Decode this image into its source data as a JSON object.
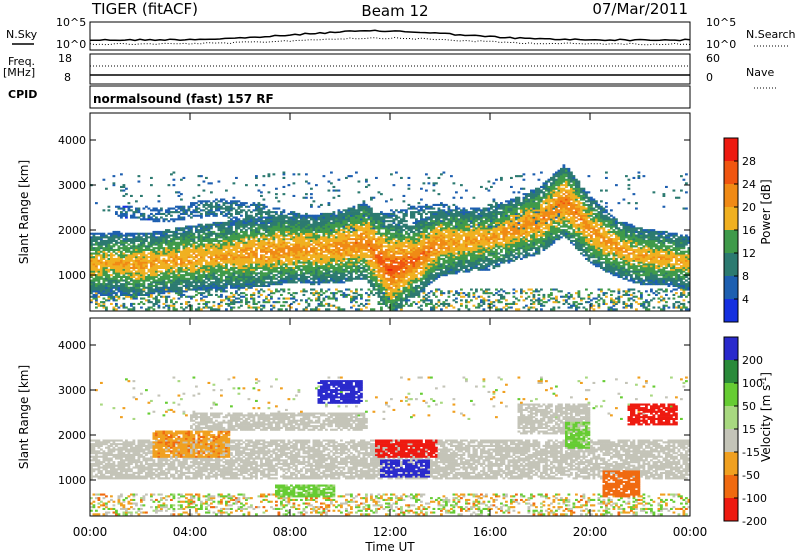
{
  "header": {
    "left": "TIGER (fitACF)",
    "center": "Beam 12",
    "right": "07/Mar/2011"
  },
  "top_panels": {
    "nsky_label": "N.Sky",
    "nsearch_label": "N.Search",
    "exp_top": "10^5",
    "exp_bottom": "10^0",
    "freq_label_1": "Freq.",
    "freq_label_2": "[MHz]",
    "freq_ticks": [
      "18",
      "8"
    ],
    "nave_label": "Nave",
    "nave_ticks": [
      "60",
      "0"
    ],
    "cpid_label": "CPID",
    "cpid_text": "normalsound (fast) 157 RF"
  },
  "colors": {
    "power_scale": [
      "#1530e0",
      "#1d5fb0",
      "#2c7a70",
      "#3f9a4a",
      "#f0b020",
      "#f08a15",
      "#f05510",
      "#ee1a10"
    ],
    "velocity_scale": [
      "#2a2acc",
      "#2a8a3a",
      "#66cc33",
      "#a8d880",
      "#c4c4b8",
      "#f0a020",
      "#f06a10",
      "#ee1a10"
    ],
    "ground_scatter": "#c4c4b8"
  },
  "chart_data": [
    {
      "type": "heatmap",
      "name": "power",
      "xlabel": "",
      "ylabel": "Slant Range [km]",
      "x_ticks": [
        "00:00",
        "04:00",
        "08:00",
        "12:00",
        "16:00",
        "20:00",
        "00:00"
      ],
      "y_ticks": [
        1000,
        2000,
        3000,
        4000
      ],
      "ylim": [
        200,
        4600
      ],
      "xlim_hours": [
        0,
        24
      ],
      "colorbar_label": "Power [dB]",
      "colorbar_ticks": [
        4,
        8,
        12,
        16,
        20,
        24,
        28
      ],
      "clim": [
        0,
        32
      ],
      "echo_band": [
        [
          0,
          1200,
          1400,
          20
        ],
        [
          1,
          1250,
          1400,
          19
        ],
        [
          2,
          1200,
          1400,
          21
        ],
        [
          3,
          1280,
          1400,
          20
        ],
        [
          4,
          1350,
          1450,
          21
        ],
        [
          5,
          1400,
          1500,
          20
        ],
        [
          6,
          1450,
          1550,
          21
        ],
        [
          7,
          1500,
          1550,
          22
        ],
        [
          8,
          1550,
          1500,
          22
        ],
        [
          9,
          1550,
          1550,
          21
        ],
        [
          10,
          1600,
          1600,
          22
        ],
        [
          11,
          1750,
          1700,
          23
        ],
        [
          12,
          1100,
          2000,
          27
        ],
        [
          13,
          1300,
          1600,
          25
        ],
        [
          14,
          1700,
          1500,
          22
        ],
        [
          15,
          1750,
          1400,
          21
        ],
        [
          16,
          1800,
          1400,
          20
        ],
        [
          17,
          2000,
          1400,
          22
        ],
        [
          18,
          2200,
          1500,
          22
        ],
        [
          19,
          2650,
          1600,
          24
        ],
        [
          20,
          2000,
          1500,
          22
        ],
        [
          21,
          1600,
          1300,
          21
        ],
        [
          22,
          1400,
          1250,
          20
        ],
        [
          23,
          1350,
          1200,
          20
        ],
        [
          24,
          1250,
          1200,
          19
        ]
      ],
      "upper_band": [
        [
          1,
          2400,
          250,
          8
        ],
        [
          3,
          2300,
          300,
          9
        ],
        [
          5,
          2500,
          400,
          10
        ],
        [
          7,
          2300,
          500,
          11
        ],
        [
          9,
          2100,
          400,
          12
        ],
        [
          11,
          2150,
          350,
          11
        ],
        [
          14,
          2350,
          500,
          10
        ],
        [
          16,
          2100,
          300,
          10
        ],
        [
          18,
          2250,
          400,
          11
        ],
        [
          19,
          2500,
          300,
          12
        ]
      ]
    },
    {
      "type": "heatmap",
      "name": "velocity",
      "xlabel": "Time UT",
      "ylabel": "Slant Range [km]",
      "x_ticks": [
        "00:00",
        "04:00",
        "08:00",
        "12:00",
        "16:00",
        "20:00",
        "00:00"
      ],
      "y_ticks": [
        1000,
        2000,
        3000,
        4000
      ],
      "ylim": [
        200,
        4600
      ],
      "xlim_hours": [
        0,
        24
      ],
      "colorbar_label": "Velocity [m s^-1]",
      "colorbar_ticks": [
        200,
        100,
        50,
        15,
        -15,
        -50,
        -100,
        -200
      ],
      "clim": [
        -250,
        250
      ],
      "features": [
        {
          "kind": "ground_scatter",
          "t0": 0,
          "t1": 24,
          "r0": 1000,
          "r1": 1900,
          "v": 0
        },
        {
          "kind": "ground_scatter",
          "t0": 4,
          "t1": 11,
          "r0": 2100,
          "r1": 2500,
          "v": 0
        },
        {
          "kind": "ground_scatter",
          "t0": 17,
          "t1": 20,
          "r0": 2000,
          "r1": 2700,
          "v": 0
        },
        {
          "kind": "echo",
          "t0": 11.3,
          "t1": 13.8,
          "r0": 1500,
          "r1": 1900,
          "v": -200
        },
        {
          "kind": "echo",
          "t0": 11.5,
          "t1": 13.5,
          "r0": 1050,
          "r1": 1450,
          "v": 200
        },
        {
          "kind": "echo",
          "t0": 9.0,
          "t1": 10.8,
          "r0": 2700,
          "r1": 3200,
          "v": 180
        },
        {
          "kind": "echo",
          "t0": 20.5,
          "t1": 22.0,
          "r0": 600,
          "r1": 1200,
          "v": -80
        },
        {
          "kind": "echo",
          "t0": 7.3,
          "t1": 9.7,
          "r0": 600,
          "r1": 900,
          "v": 40
        },
        {
          "kind": "echo",
          "t0": 2.5,
          "t1": 5.5,
          "r0": 1500,
          "r1": 2100,
          "v": -40
        },
        {
          "kind": "echo",
          "t0": 21.5,
          "t1": 23.5,
          "r0": 2200,
          "r1": 2700,
          "v": -200
        },
        {
          "kind": "echo",
          "t0": 19.0,
          "t1": 20.0,
          "r0": 1700,
          "r1": 2300,
          "v": 40
        }
      ]
    }
  ]
}
